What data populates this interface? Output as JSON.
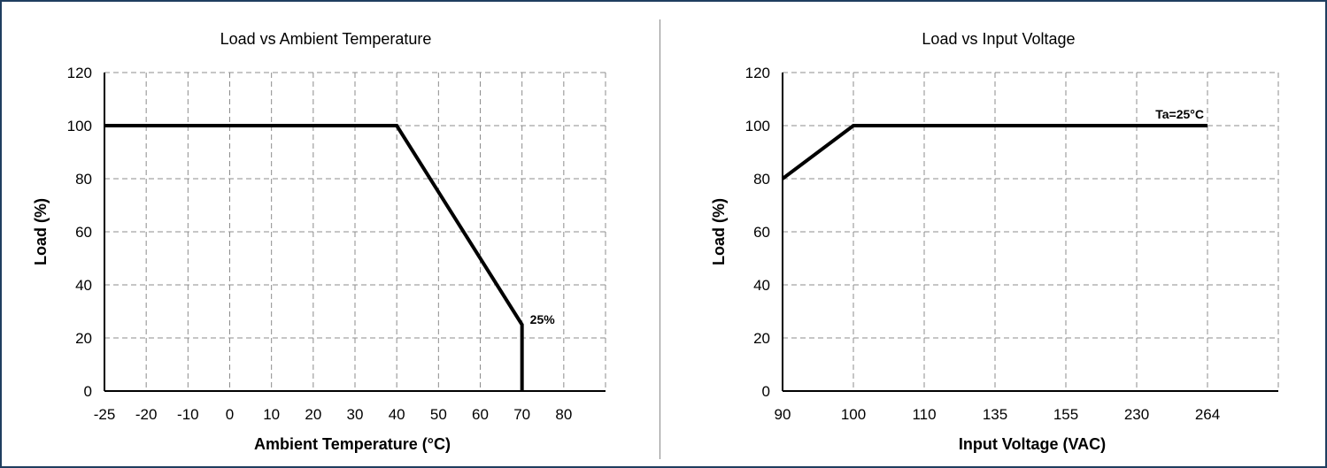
{
  "chart_data": [
    {
      "type": "line",
      "title": "Load vs Ambient Temperature",
      "xlabel": "Ambient Temperature (°C)",
      "ylabel": "Load (%)",
      "x_ticks": [
        "-25",
        "-20",
        "-10",
        "0",
        "10",
        "20",
        "30",
        "40",
        "50",
        "60",
        "70",
        "80"
      ],
      "y_ticks": [
        "0",
        "20",
        "40",
        "60",
        "80",
        "100",
        "120"
      ],
      "ylim": [
        0,
        120
      ],
      "grid": true,
      "series": [
        {
          "x": [
            "-25",
            "40",
            "70",
            "70"
          ],
          "y": [
            100,
            100,
            25,
            0
          ]
        }
      ],
      "annotations": [
        {
          "text": "25%",
          "x": "70",
          "y": 25
        }
      ]
    },
    {
      "type": "line",
      "title": "Load vs Input Voltage",
      "xlabel": "Input Voltage (VAC)",
      "ylabel": "Load (%)",
      "x_ticks": [
        "90",
        "100",
        "110",
        "135",
        "155",
        "230",
        "264"
      ],
      "y_ticks": [
        "0",
        "20",
        "40",
        "60",
        "80",
        "100",
        "120"
      ],
      "ylim": [
        0,
        120
      ],
      "grid": true,
      "series": [
        {
          "x": [
            "90",
            "100",
            "264"
          ],
          "y": [
            80,
            100,
            100
          ]
        }
      ],
      "annotations": [
        {
          "text": "Ta=25°C",
          "x": "264",
          "y": 100
        }
      ]
    }
  ]
}
